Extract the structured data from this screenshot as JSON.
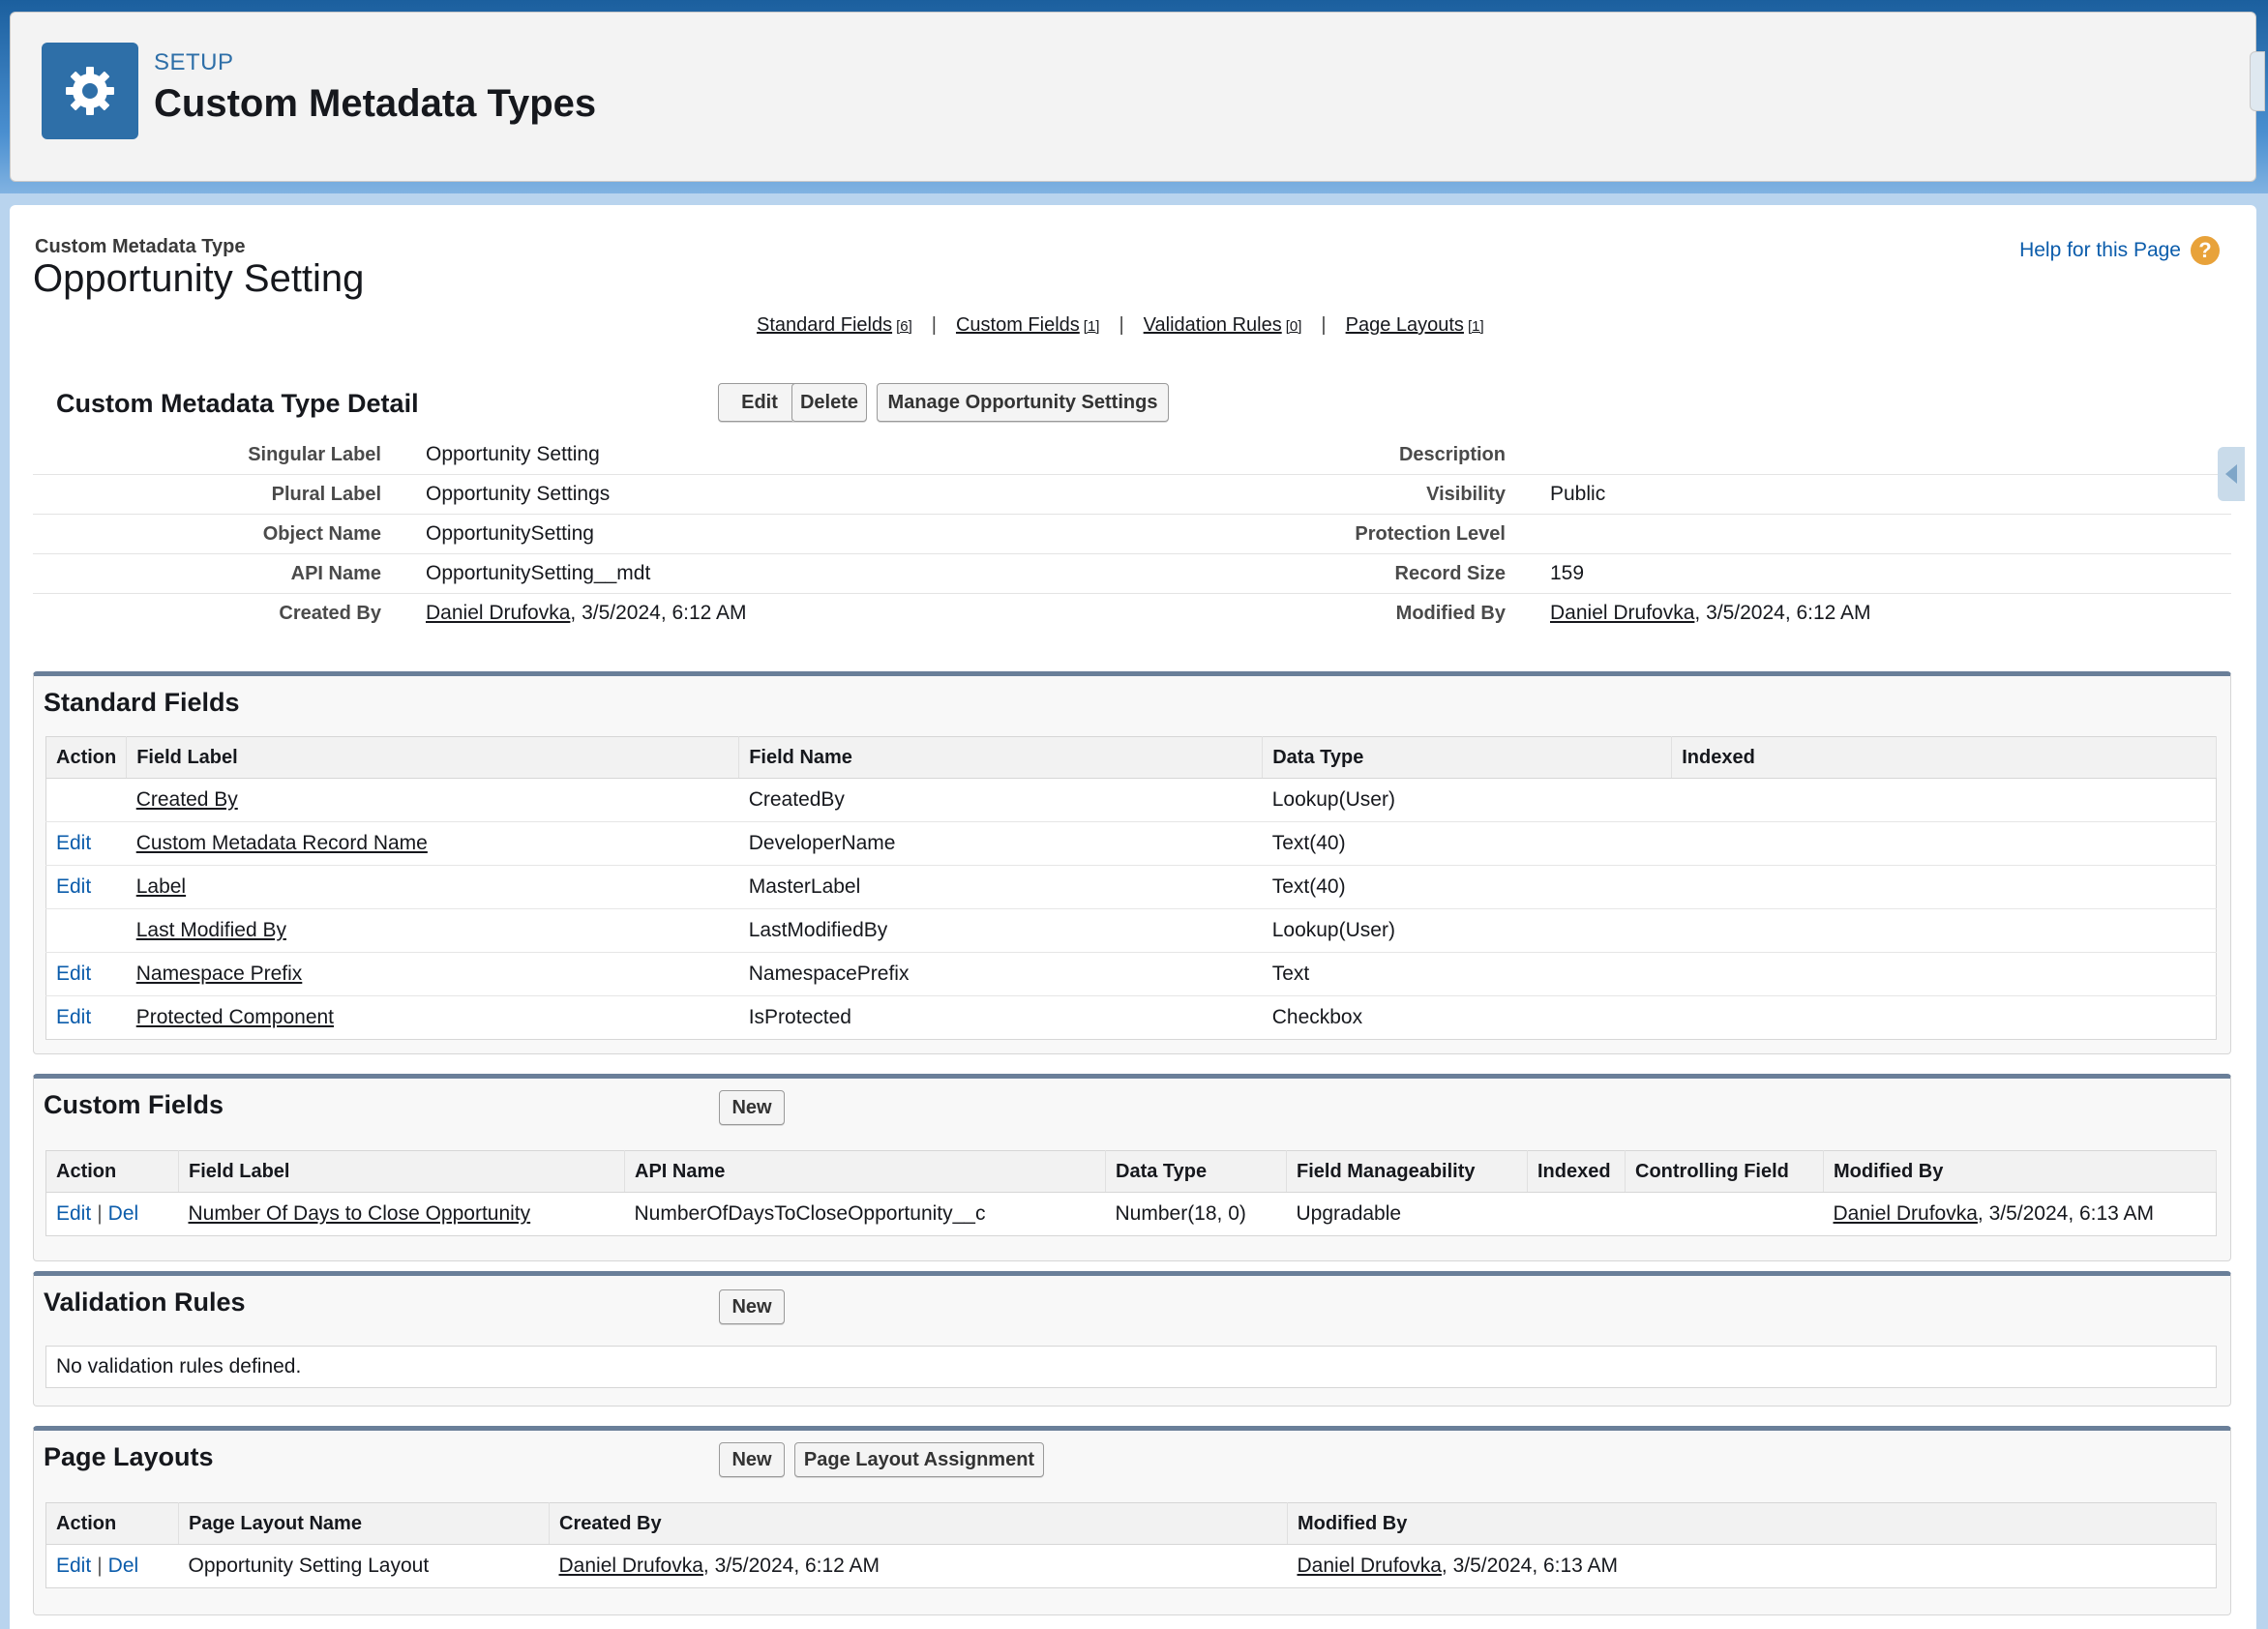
{
  "header": {
    "setup_label": "SETUP",
    "title": "Custom Metadata Types",
    "icon": "gear-icon"
  },
  "page": {
    "crumb": "Custom Metadata Type",
    "title": "Opportunity Setting",
    "help_link": "Help for this Page",
    "help_icon": "question-icon"
  },
  "related_links": [
    {
      "label": "Standard Fields",
      "count": "[6]"
    },
    {
      "label": "Custom Fields",
      "count": "[1]"
    },
    {
      "label": "Validation Rules",
      "count": "[0]"
    },
    {
      "label": "Page Layouts",
      "count": "[1]"
    }
  ],
  "detail": {
    "title": "Custom Metadata Type Detail",
    "buttons": {
      "edit": "Edit",
      "delete": "Delete",
      "manage": "Manage Opportunity Settings"
    },
    "left": [
      {
        "label": "Singular Label",
        "value": "Opportunity Setting"
      },
      {
        "label": "Plural Label",
        "value": "Opportunity Settings"
      },
      {
        "label": "Object Name",
        "value": "OpportunitySetting"
      },
      {
        "label": "API Name",
        "value": "OpportunitySetting__mdt"
      },
      {
        "label": "Created By",
        "user": "Daniel Drufovka",
        "value": ", 3/5/2024, 6:12 AM"
      }
    ],
    "right": [
      {
        "label": "Description",
        "value": ""
      },
      {
        "label": "Visibility",
        "value": "Public"
      },
      {
        "label": "Protection Level",
        "value": ""
      },
      {
        "label": "Record Size",
        "value": "159"
      },
      {
        "label": "Modified By",
        "user": "Daniel Drufovka",
        "value": ", 3/5/2024, 6:12 AM"
      }
    ]
  },
  "standard_fields": {
    "title": "Standard Fields",
    "columns": [
      "Action",
      "Field Label",
      "Field Name",
      "Data Type",
      "Indexed"
    ],
    "rows": [
      {
        "action": "",
        "label": "Created By",
        "name": "CreatedBy",
        "type": "Lookup(User)",
        "indexed": ""
      },
      {
        "action": "Edit",
        "label": "Custom Metadata Record Name",
        "name": "DeveloperName",
        "type": "Text(40)",
        "indexed": ""
      },
      {
        "action": "Edit",
        "label": "Label",
        "name": "MasterLabel",
        "type": "Text(40)",
        "indexed": ""
      },
      {
        "action": "",
        "label": "Last Modified By",
        "name": "LastModifiedBy",
        "type": "Lookup(User)",
        "indexed": ""
      },
      {
        "action": "Edit",
        "label": "Namespace Prefix",
        "name": "NamespacePrefix",
        "type": "Text",
        "indexed": ""
      },
      {
        "action": "Edit",
        "label": "Protected Component",
        "name": "IsProtected",
        "type": "Checkbox",
        "indexed": ""
      }
    ]
  },
  "custom_fields": {
    "title": "Custom Fields",
    "new_label": "New",
    "columns": [
      "Action",
      "Field Label",
      "API Name",
      "Data Type",
      "Field Manageability",
      "Indexed",
      "Controlling Field",
      "Modified By"
    ],
    "rows": [
      {
        "edit": "Edit",
        "sep": "|",
        "del": "Del",
        "label": "Number Of Days to Close Opportunity",
        "api": "NumberOfDaysToCloseOpportunity__c",
        "type": "Number(18, 0)",
        "manageability": "Upgradable",
        "indexed": "",
        "controlling": "",
        "user": "Daniel Drufovka",
        "when": ", 3/5/2024, 6:13 AM"
      }
    ]
  },
  "validation_rules": {
    "title": "Validation Rules",
    "new_label": "New",
    "empty": "No validation rules defined."
  },
  "page_layouts": {
    "title": "Page Layouts",
    "new_label": "New",
    "assign_label": "Page Layout Assignment",
    "columns": [
      "Action",
      "Page Layout Name",
      "Created By",
      "Modified By"
    ],
    "rows": [
      {
        "edit": "Edit",
        "sep": "|",
        "del": "Del",
        "name": "Opportunity Setting Layout",
        "created_user": "Daniel Drufovka",
        "created_when": ", 3/5/2024, 6:12 AM",
        "modified_user": "Daniel Drufovka",
        "modified_when": ", 3/5/2024, 6:13 AM"
      }
    ]
  }
}
